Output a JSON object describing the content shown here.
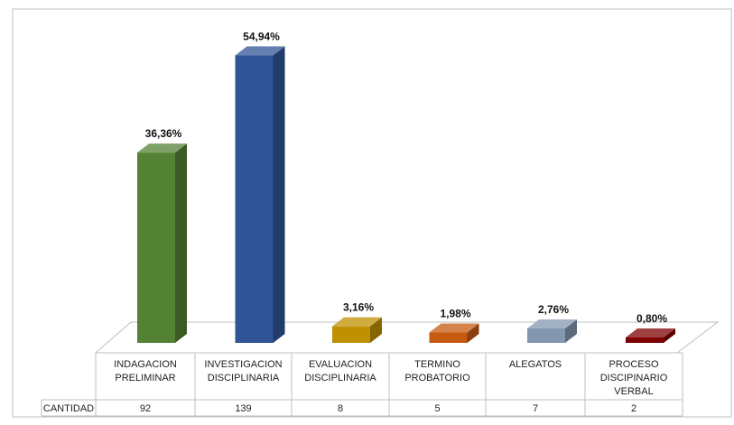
{
  "chart_data": {
    "type": "bar",
    "title": "",
    "xlabel": "",
    "ylabel": "",
    "grid": false,
    "legend": "none",
    "categories": [
      [
        "INDAGACION",
        "PRELIMINAR"
      ],
      [
        "INVESTIGACION",
        "DISCIPLINARIA"
      ],
      [
        "EVALUACION",
        "DISCIPLINARIA"
      ],
      [
        "TERMINO",
        "PROBATORIO"
      ],
      [
        "ALEGATOS"
      ],
      [
        "PROCESO",
        "DISCIPINARIO",
        "VERBAL"
      ]
    ],
    "percent_labels": [
      "36,36%",
      "54,94%",
      "3,16%",
      "1,98%",
      "2,76%",
      "0,80%"
    ],
    "percent_values": [
      36.36,
      54.94,
      3.16,
      1.98,
      2.76,
      0.8
    ],
    "table": {
      "row_label": "CANTIDAD",
      "values": [
        "92",
        "139",
        "8",
        "5",
        "7",
        "2"
      ]
    },
    "colors": [
      "#548235",
      "#2f5597",
      "#bf9000",
      "#c55a11",
      "#8497b0",
      "#7f0000"
    ]
  }
}
